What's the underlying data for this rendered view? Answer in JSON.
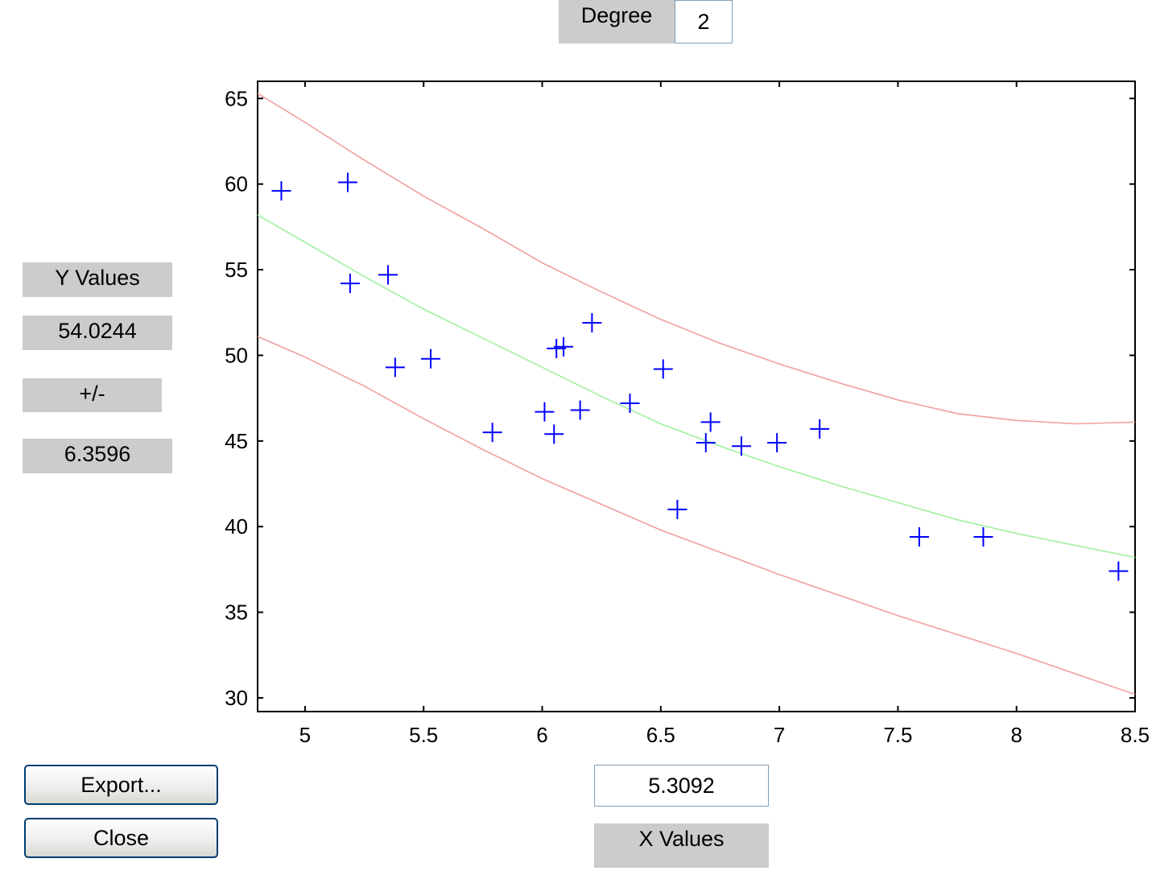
{
  "degree": {
    "label": "Degree",
    "value": "2"
  },
  "y_panel": {
    "title": "Y Values",
    "value": "54.0244",
    "pm_label": "+/-",
    "pm_value": "6.3596"
  },
  "x_panel": {
    "value": "5.3092",
    "title": "X Values"
  },
  "buttons": {
    "export": "Export...",
    "close": "Close"
  },
  "colors": {
    "points": "#0000ff",
    "fit": "#a0f0a0",
    "bounds": "#f0a0a0",
    "axis": "#000000"
  },
  "chart_data": {
    "type": "scatter",
    "xlim": [
      4.8,
      8.5
    ],
    "ylim": [
      29.2,
      66
    ],
    "x_ticks": [
      5,
      5.5,
      6,
      6.5,
      7,
      7.5,
      8,
      8.5
    ],
    "x_tick_labels": [
      "5",
      "5.5",
      "6",
      "6.5",
      "7",
      "7.5",
      "8",
      "8.5"
    ],
    "y_ticks": [
      30,
      35,
      40,
      45,
      50,
      55,
      60,
      65
    ],
    "y_tick_labels": [
      "30",
      "35",
      "40",
      "45",
      "50",
      "55",
      "60",
      "65"
    ],
    "points": [
      [
        4.9,
        59.6
      ],
      [
        5.18,
        60.1
      ],
      [
        5.19,
        54.2
      ],
      [
        5.35,
        54.7
      ],
      [
        5.38,
        49.3
      ],
      [
        5.53,
        49.8
      ],
      [
        5.79,
        45.5
      ],
      [
        6.01,
        46.7
      ],
      [
        6.05,
        45.4
      ],
      [
        6.06,
        50.4
      ],
      [
        6.09,
        50.5
      ],
      [
        6.16,
        46.8
      ],
      [
        6.21,
        51.9
      ],
      [
        6.37,
        47.2
      ],
      [
        6.51,
        49.2
      ],
      [
        6.57,
        41.0
      ],
      [
        6.69,
        44.9
      ],
      [
        6.71,
        46.1
      ],
      [
        6.84,
        44.7
      ],
      [
        6.99,
        44.9
      ],
      [
        7.17,
        45.7
      ],
      [
        7.59,
        39.4
      ],
      [
        7.86,
        39.4
      ],
      [
        8.43,
        37.4
      ]
    ],
    "fit_line": [
      [
        4.8,
        58.2
      ],
      [
        5.0,
        56.6
      ],
      [
        5.25,
        54.6
      ],
      [
        5.5,
        52.7
      ],
      [
        5.75,
        51.0
      ],
      [
        6.0,
        49.3
      ],
      [
        6.25,
        47.6
      ],
      [
        6.5,
        46.0
      ],
      [
        6.75,
        44.7
      ],
      [
        7.0,
        43.5
      ],
      [
        7.25,
        42.4
      ],
      [
        7.5,
        41.4
      ],
      [
        7.75,
        40.4
      ],
      [
        8.0,
        39.6
      ],
      [
        8.25,
        38.9
      ],
      [
        8.5,
        38.2
      ]
    ],
    "upper_bound": [
      [
        4.8,
        65.3
      ],
      [
        5.0,
        63.6
      ],
      [
        5.25,
        61.4
      ],
      [
        5.5,
        59.3
      ],
      [
        5.75,
        57.4
      ],
      [
        6.0,
        55.4
      ],
      [
        6.25,
        53.7
      ],
      [
        6.5,
        52.1
      ],
      [
        6.75,
        50.7
      ],
      [
        7.0,
        49.5
      ],
      [
        7.25,
        48.4
      ],
      [
        7.5,
        47.4
      ],
      [
        7.75,
        46.6
      ],
      [
        8.0,
        46.2
      ],
      [
        8.25,
        46.0
      ],
      [
        8.5,
        46.1
      ]
    ],
    "lower_bound": [
      [
        4.8,
        51.1
      ],
      [
        5.0,
        49.9
      ],
      [
        5.25,
        48.2
      ],
      [
        5.5,
        46.3
      ],
      [
        5.75,
        44.5
      ],
      [
        6.0,
        42.8
      ],
      [
        6.25,
        41.3
      ],
      [
        6.5,
        39.8
      ],
      [
        6.75,
        38.5
      ],
      [
        7.0,
        37.2
      ],
      [
        7.25,
        36.0
      ],
      [
        7.5,
        34.8
      ],
      [
        7.75,
        33.7
      ],
      [
        8.0,
        32.6
      ],
      [
        8.25,
        31.4
      ],
      [
        8.5,
        30.2
      ]
    ]
  }
}
